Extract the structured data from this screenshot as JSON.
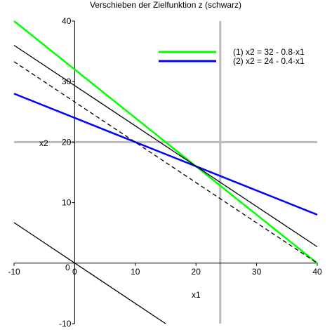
{
  "chart_data": {
    "type": "line",
    "title": "Verschieben der Zielfunktion z (schwarz)",
    "xlabel": "x1",
    "ylabel": "x2",
    "xlim": [
      -10,
      40
    ],
    "ylim": [
      -10,
      40
    ],
    "x_ticks": [
      -10,
      0,
      10,
      20,
      30,
      40
    ],
    "y_ticks": [
      -10,
      10,
      20,
      30,
      40
    ],
    "origin_label": "0",
    "grid": false,
    "legend_position": "top-right",
    "series": [
      {
        "name": "(1) x2 = 32 - 0.8·x1",
        "color": "#00ff00",
        "style": "solid",
        "points": [
          [
            -10,
            40
          ],
          [
            40,
            0
          ]
        ]
      },
      {
        "name": "(2) x2 = 24 - 0.4·x1",
        "color": "#0000ff",
        "style": "solid",
        "points": [
          [
            -10,
            28
          ],
          [
            40,
            8
          ]
        ]
      },
      {
        "color": "#000000",
        "style": "solid",
        "points": [
          [
            -10,
            36
          ],
          [
            40,
            2.7
          ]
        ]
      },
      {
        "color": "#000000",
        "style": "dashed",
        "points": [
          [
            -10,
            33.3
          ],
          [
            40,
            0
          ]
        ]
      },
      {
        "color": "#000000",
        "style": "solid",
        "points": [
          [
            -10,
            6.7
          ],
          [
            15,
            -10
          ]
        ]
      }
    ],
    "reference_lines": [
      {
        "orientation": "vertical",
        "x": 24,
        "color": "#bbbbbb"
      },
      {
        "orientation": "horizontal",
        "y": 20,
        "color": "#bbbbbb"
      }
    ]
  }
}
